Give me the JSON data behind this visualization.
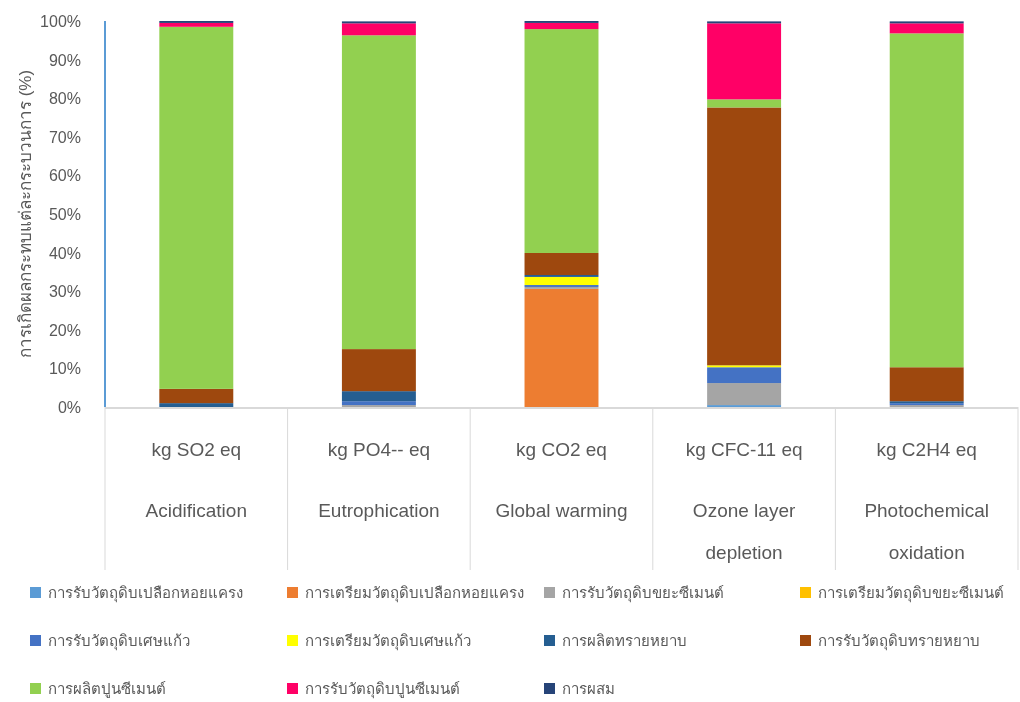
{
  "chart_data": {
    "type": "bar",
    "stacked": true,
    "ylabel": "การเกิดผลกระทบแต่ละกระบวนการ (%)",
    "categories": [
      "kg SO2 eq\nAcidification",
      "kg PO4-‐ eq\nEutrophication",
      "kg CO2 eq\nGlobal warming",
      "kg CFC-11 eq\nOzone layer depletion",
      "kg C2H4 eq\nPhotochemical oxidation"
    ],
    "ylim": [
      0,
      100
    ],
    "yticks": [
      {
        "value": 0,
        "label": "0%"
      },
      {
        "value": 10,
        "label": "10%"
      },
      {
        "value": 20,
        "label": "20%"
      },
      {
        "value": 30,
        "label": "30%"
      },
      {
        "value": 40,
        "label": "40%"
      },
      {
        "value": 50,
        "label": "50%"
      },
      {
        "value": 60,
        "label": "60%"
      },
      {
        "value": 70,
        "label": "70%"
      },
      {
        "value": 80,
        "label": "80%"
      },
      {
        "value": 90,
        "label": "90%"
      },
      {
        "value": 100,
        "label": "100%"
      }
    ],
    "grid": false,
    "legend": "bottom",
    "series": [
      {
        "name": "การรับวัตถุดิบเปลือกหอยแครง",
        "color": "#5b9bd5",
        "values": [
          null,
          null,
          null,
          0.5,
          null
        ]
      },
      {
        "name": "การเตรียมวัตถุดิบเปลือกหอยแครง",
        "color": "#ed7d31",
        "values": [
          null,
          null,
          30.6,
          null,
          null
        ]
      },
      {
        "name": "การรับวัตถุดิบขยะซีเมนต์",
        "color": "#a5a5a5",
        "values": [
          null,
          0.5,
          0.5,
          5.7,
          0.5
        ]
      },
      {
        "name": "การเตรียมวัตถุดิบขยะซีเมนต์",
        "color": "#ffc000",
        "values": [
          null,
          null,
          null,
          null,
          null
        ]
      },
      {
        "name": "การรับวัตถุดิบเศษแก้ว",
        "color": "#4472c4",
        "values": [
          null,
          1.0,
          0.5,
          4.1,
          0.5
        ]
      },
      {
        "name": "การเตรียมวัตถุดิบเศษแก้ว",
        "color": "#ffff00",
        "values": [
          null,
          null,
          2.1,
          0.5,
          null
        ]
      },
      {
        "name": "การผลิตทรายหยาบ",
        "color": "#255e91",
        "values": [
          1.0,
          2.6,
          0.5,
          null,
          0.5
        ]
      },
      {
        "name": "การรับวัตถุดิบทรายหยาบ",
        "color": "#9e480e",
        "values": [
          3.7,
          10.9,
          5.7,
          66.8,
          8.8
        ]
      },
      {
        "name": "การผลิตปูนซีเมนต์",
        "color": "#92d050",
        "values": [
          93.8,
          81.3,
          58.0,
          2.1,
          86.5
        ]
      },
      {
        "name": "การรับวัตถุดิบปูนซีเมนต์",
        "color": "#ff0066",
        "values": [
          1.0,
          3.1,
          1.6,
          19.7,
          2.6
        ]
      },
      {
        "name": "การผสม",
        "color": "#264478",
        "values": [
          0.5,
          0.5,
          0.5,
          0.5,
          0.5
        ]
      }
    ]
  }
}
